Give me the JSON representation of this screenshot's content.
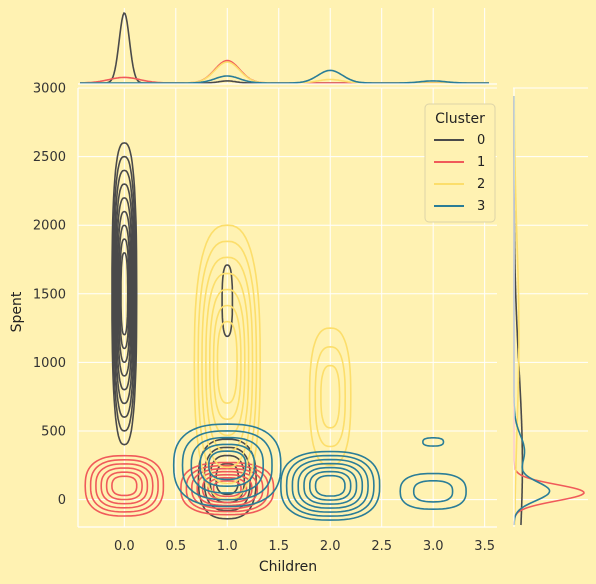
{
  "chart_data": {
    "type": "kde-joint",
    "xlabel": "Children",
    "ylabel": "Spent",
    "xlim": [
      -0.45,
      3.62
    ],
    "ylim": [
      -200,
      3000
    ],
    "x_ticks": [
      "0.0",
      "0.5",
      "1.0",
      "1.5",
      "2.0",
      "2.5",
      "3.0",
      "3.5"
    ],
    "y_ticks": [
      "0",
      "500",
      "1000",
      "1500",
      "2000",
      "2500",
      "3000"
    ],
    "grid": true,
    "legend": {
      "title": "Cluster",
      "placement": "top-right",
      "entries": [
        {
          "label": "0",
          "color": "#4A4A4A"
        },
        {
          "label": "1",
          "color": "#F05A5A"
        },
        {
          "label": "2",
          "color": "#FCDE6B"
        },
        {
          "label": "3",
          "color": "#2A7D97"
        }
      ]
    },
    "series": [
      {
        "name": "0",
        "color": "#4A4A4A",
        "blobs": [
          {
            "x": 0.0,
            "y": 1500,
            "wx": 0.12,
            "wy": 1100,
            "levels": 9
          },
          {
            "x": 1.0,
            "y": 1450,
            "wx": 0.05,
            "wy": 260,
            "levels": 1
          },
          {
            "x": 1.0,
            "y": 150,
            "wx": 0.28,
            "wy": 290,
            "levels": 4
          }
        ],
        "x_marginal": [
          {
            "x": 0.0,
            "h": 1.0,
            "w": 0.05
          },
          {
            "x": 1.0,
            "h": 0.03,
            "w": 0.08
          }
        ],
        "y_marginal": [
          {
            "y": 250,
            "h": 0.12,
            "w": 700
          }
        ]
      },
      {
        "name": "1",
        "color": "#F05A5A",
        "blobs": [
          {
            "x": 0.0,
            "y": 100,
            "wx": 0.38,
            "wy": 220,
            "levels": 6
          },
          {
            "x": 1.0,
            "y": 80,
            "wx": 0.45,
            "wy": 190,
            "levels": 7
          }
        ],
        "x_marginal": [
          {
            "x": 0.0,
            "h": 0.08,
            "w": 0.15
          },
          {
            "x": 1.0,
            "h": 0.32,
            "w": 0.12
          }
        ],
        "y_marginal": [
          {
            "y": 50,
            "h": 1.0,
            "w": 60
          }
        ]
      },
      {
        "name": "2",
        "color": "#FCDE6B",
        "blobs": [
          {
            "x": 1.0,
            "y": 1000,
            "wx": 0.32,
            "wy": 1000,
            "levels": 7
          },
          {
            "x": 2.0,
            "y": 750,
            "wx": 0.2,
            "wy": 500,
            "levels": 3
          }
        ],
        "x_marginal": [
          {
            "x": 1.0,
            "h": 0.3,
            "w": 0.12
          },
          {
            "x": 2.0,
            "h": 0.05,
            "w": 0.12
          }
        ],
        "y_marginal": [
          {
            "y": 1200,
            "h": 0.07,
            "w": 700
          }
        ]
      },
      {
        "name": "3",
        "color": "#2A7D97",
        "blobs": [
          {
            "x": 1.0,
            "y": 250,
            "wx": 0.52,
            "wy": 300,
            "levels": 5
          },
          {
            "x": 2.0,
            "y": 100,
            "wx": 0.48,
            "wy": 250,
            "levels": 7
          },
          {
            "x": 3.0,
            "y": 60,
            "wx": 0.32,
            "wy": 130,
            "levels": 2
          },
          {
            "x": 3.0,
            "y": 420,
            "wx": 0.1,
            "wy": 30,
            "levels": 1
          }
        ],
        "x_marginal": [
          {
            "x": 1.0,
            "h": 0.1,
            "w": 0.12
          },
          {
            "x": 2.0,
            "h": 0.18,
            "w": 0.12
          },
          {
            "x": 3.0,
            "h": 0.03,
            "w": 0.12
          }
        ],
        "y_marginal": [
          {
            "y": 60,
            "h": 0.5,
            "w": 70
          },
          {
            "y": 350,
            "h": 0.15,
            "w": 120
          }
        ]
      }
    ]
  }
}
